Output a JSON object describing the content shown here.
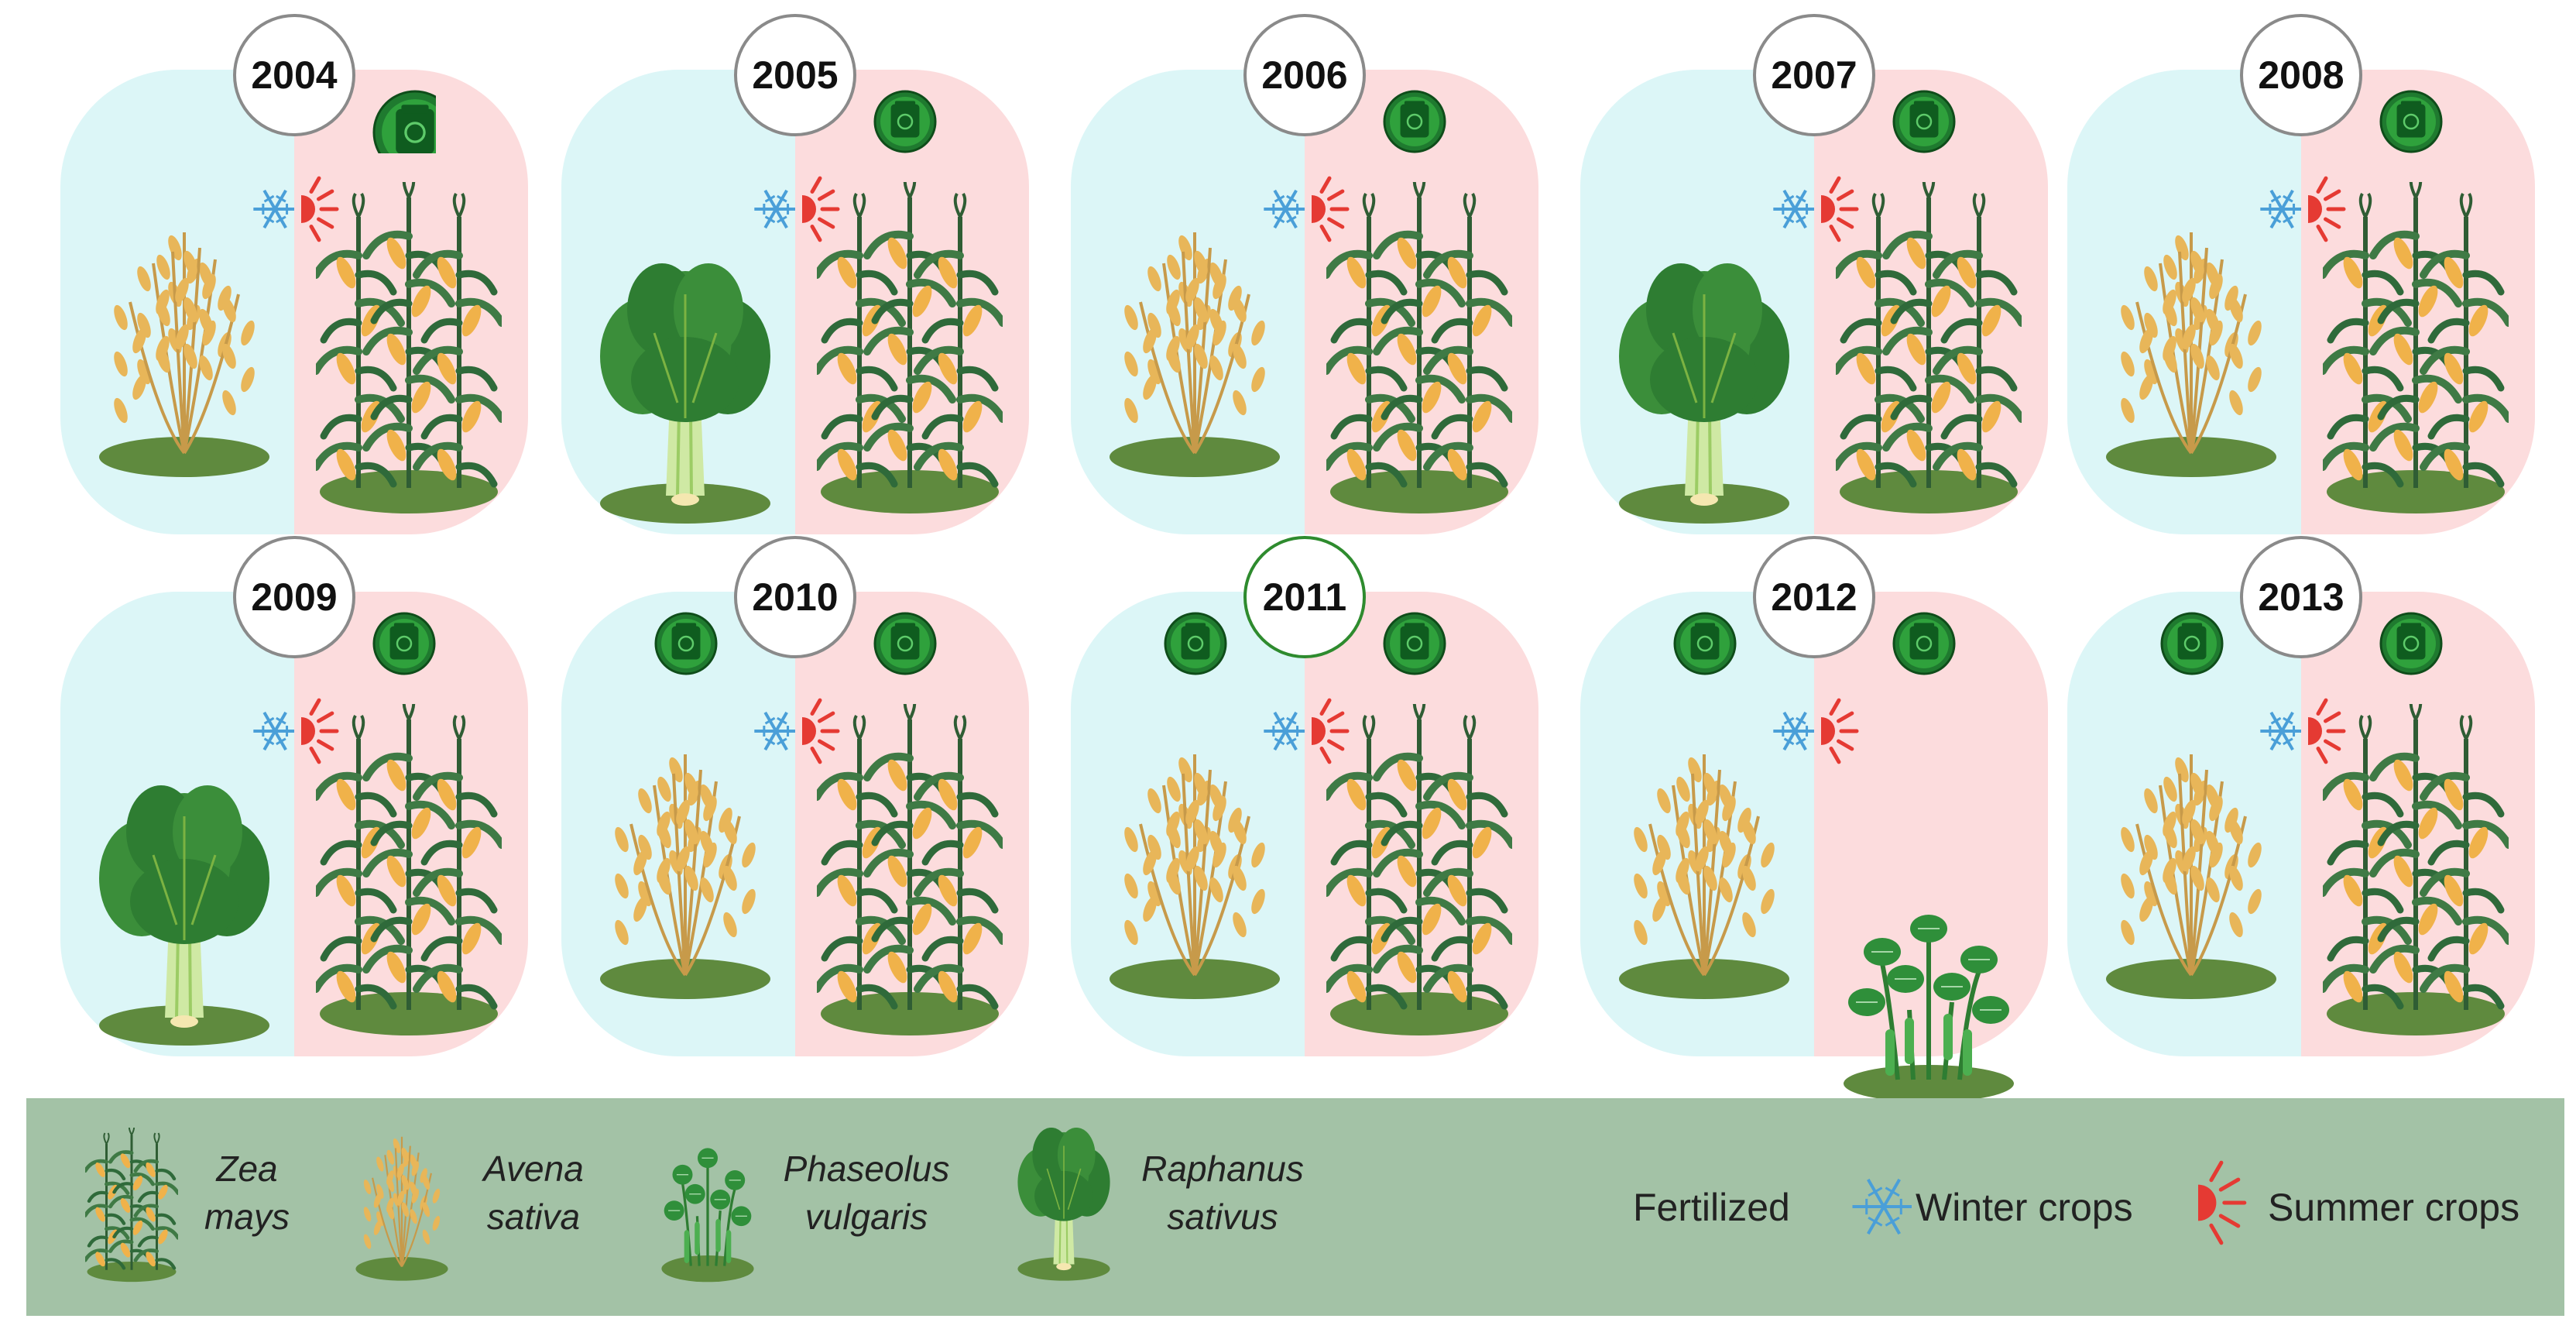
{
  "colors": {
    "winter_panel": "#dcf6f7",
    "summer_panel": "#fcdcdd",
    "legend_bg": "#a3c2a6",
    "fertilized": "#2f9a3b",
    "snow": "#4a9fd8",
    "sun": "#e53a33",
    "highlight_ring": "#2e8b2e"
  },
  "years": [
    {
      "year": "2004",
      "winter": "avena",
      "summer": "zea",
      "fert_winter": false,
      "fert_summer": true,
      "highlight": false
    },
    {
      "year": "2005",
      "winter": "raphanus",
      "summer": "zea",
      "fert_winter": false,
      "fert_summer": true,
      "highlight": false
    },
    {
      "year": "2006",
      "winter": "avena",
      "summer": "zea",
      "fert_winter": false,
      "fert_summer": true,
      "highlight": false
    },
    {
      "year": "2007",
      "winter": "raphanus",
      "summer": "zea",
      "fert_winter": false,
      "fert_summer": true,
      "highlight": false
    },
    {
      "year": "2008",
      "winter": "avena",
      "summer": "zea",
      "fert_winter": false,
      "fert_summer": true,
      "highlight": false
    },
    {
      "year": "2009",
      "winter": "raphanus",
      "summer": "zea",
      "fert_winter": false,
      "fert_summer": true,
      "highlight": false
    },
    {
      "year": "2010",
      "winter": "avena",
      "summer": "zea",
      "fert_winter": true,
      "fert_summer": true,
      "highlight": false
    },
    {
      "year": "2011",
      "winter": "avena",
      "summer": "zea",
      "fert_winter": true,
      "fert_summer": true,
      "highlight": true
    },
    {
      "year": "2012",
      "winter": "avena",
      "summer": "phaseolus",
      "fert_winter": true,
      "fert_summer": true,
      "highlight": false
    },
    {
      "year": "2013",
      "winter": "avena",
      "summer": "zea",
      "fert_winter": true,
      "fert_summer": true,
      "highlight": false
    }
  ],
  "legend": {
    "zea_line1": "Zea",
    "zea_line2": "mays",
    "avena_line1": "Avena",
    "avena_line2": "sativa",
    "phaseolus_line1": "Phaseolus",
    "phaseolus_line2": "vulgaris",
    "raphanus_line1": "Raphanus",
    "raphanus_line2": "sativus",
    "fertilized": "Fertilized",
    "winter": "Winter crops",
    "summer": "Summer crops"
  }
}
